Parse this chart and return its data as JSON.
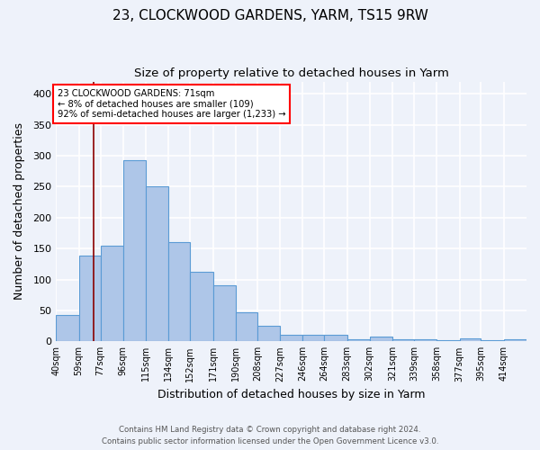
{
  "title1": "23, CLOCKWOOD GARDENS, YARM, TS15 9RW",
  "title2": "Size of property relative to detached houses in Yarm",
  "xlabel": "Distribution of detached houses by size in Yarm",
  "ylabel": "Number of detached properties",
  "footer1": "Contains HM Land Registry data © Crown copyright and database right 2024.",
  "footer2": "Contains public sector information licensed under the Open Government Licence v3.0.",
  "bins": [
    "40sqm",
    "59sqm",
    "77sqm",
    "96sqm",
    "115sqm",
    "134sqm",
    "152sqm",
    "171sqm",
    "190sqm",
    "208sqm",
    "227sqm",
    "246sqm",
    "264sqm",
    "283sqm",
    "302sqm",
    "321sqm",
    "339sqm",
    "358sqm",
    "377sqm",
    "395sqm",
    "414sqm"
  ],
  "values": [
    42,
    139,
    155,
    293,
    251,
    161,
    113,
    91,
    47,
    25,
    10,
    10,
    11,
    4,
    8,
    4,
    3,
    2,
    5,
    2,
    3
  ],
  "bar_color": "#aec6e8",
  "bar_edge_color": "#5b9bd5",
  "vline_x": 71,
  "vline_color": "#8b0000",
  "annotation_text": "23 CLOCKWOOD GARDENS: 71sqm\n← 8% of detached houses are smaller (109)\n92% of semi-detached houses are larger (1,233) →",
  "annotation_box_color": "white",
  "annotation_box_edge_color": "red",
  "ylim": [
    0,
    420
  ],
  "yticks": [
    0,
    50,
    100,
    150,
    200,
    250,
    300,
    350,
    400
  ],
  "bg_color": "#eef2fa",
  "grid_color": "white",
  "title_fontsize": 11,
  "subtitle_fontsize": 9.5,
  "bin_edges": [
    40,
    59,
    77,
    96,
    115,
    134,
    152,
    171,
    190,
    208,
    227,
    246,
    264,
    283,
    302,
    321,
    339,
    358,
    377,
    395,
    414,
    433
  ]
}
